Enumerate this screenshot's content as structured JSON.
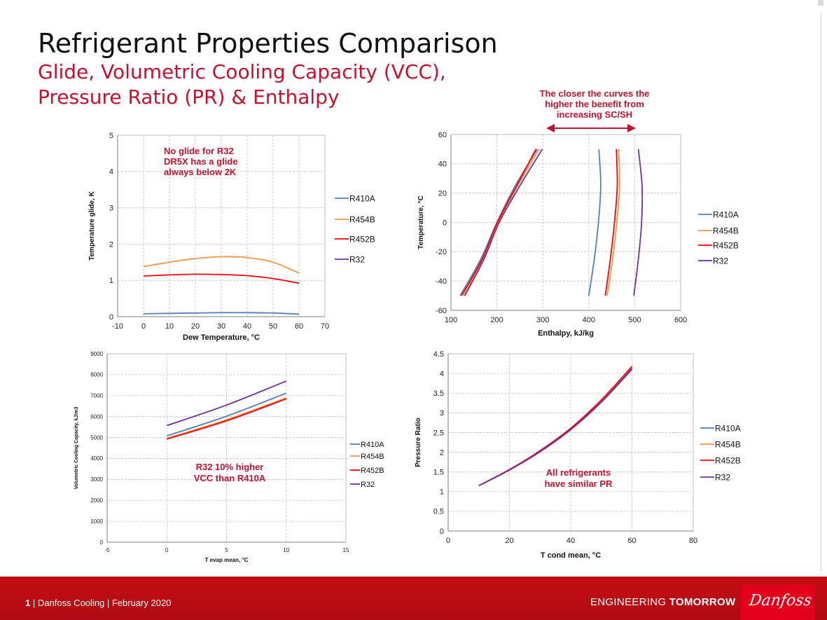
{
  "slide": {
    "title": "Refrigerant Properties Comparison",
    "subtitle_line1": "Glide, Volumetric Cooling Capacity (VCC),",
    "subtitle_line2": "Pressure Ratio (PR) & Enthalpy"
  },
  "footer": {
    "page_number": "1",
    "separator": "|",
    "text": "Danfoss Cooling | February 2020",
    "tagline_light": "ENGINEERING",
    "tagline_bold": "TOMORROW",
    "logo": "Danfoss"
  },
  "colors": {
    "R410A": "#4f81bd",
    "R454B": "#f79646",
    "R452B": "#ff0000",
    "R32": "#7030a0",
    "accent_red": "#c8102e",
    "footer_red": "#c40d15"
  },
  "chart_data": [
    {
      "id": "glide",
      "type": "line",
      "title": "",
      "xlabel": "Dew Temperature, °C",
      "ylabel": "Temperature glide, K",
      "xlim": [
        -10,
        70
      ],
      "ylim": [
        0,
        5
      ],
      "xticks": [
        -10,
        0,
        10,
        20,
        30,
        40,
        50,
        60,
        70
      ],
      "yticks": [
        0,
        1,
        2,
        3,
        4,
        5
      ],
      "grid": true,
      "legend": "right",
      "annotation": [
        "No glide for R32",
        "DR5X has a glide",
        "always below 2K"
      ],
      "series": [
        {
          "name": "R410A",
          "x": [
            0,
            10,
            20,
            30,
            40,
            50,
            60
          ],
          "y": [
            0.08,
            0.09,
            0.1,
            0.11,
            0.11,
            0.1,
            0.07
          ]
        },
        {
          "name": "R454B",
          "x": [
            0,
            10,
            20,
            30,
            40,
            50,
            60
          ],
          "y": [
            1.38,
            1.5,
            1.6,
            1.65,
            1.63,
            1.5,
            1.2
          ]
        },
        {
          "name": "R452B",
          "x": [
            0,
            10,
            20,
            30,
            40,
            50,
            60
          ],
          "y": [
            1.12,
            1.15,
            1.17,
            1.16,
            1.13,
            1.05,
            0.92
          ]
        },
        {
          "name": "R32",
          "x": [],
          "y": []
        }
      ]
    },
    {
      "id": "enthalpy",
      "type": "line",
      "title": "",
      "xlabel": "Enthalpy, kJ/kg",
      "ylabel": "Temperature, °C",
      "xlim": [
        100,
        600
      ],
      "ylim": [
        -60,
        60
      ],
      "xticks": [
        100,
        200,
        300,
        400,
        500,
        600
      ],
      "yticks": [
        -60,
        -40,
        -20,
        0,
        20,
        40,
        60
      ],
      "grid": true,
      "legend": "right",
      "annotation": [
        "The closer the curves the",
        "higher the benefit from",
        "increasing SC/SH"
      ],
      "series": [
        {
          "name": "R410A",
          "segments": [
            {
              "x": [
                120,
                165,
                200,
                240,
                288
              ],
              "y": [
                -50,
                -25,
                0,
                25,
                50
              ]
            },
            {
              "x": [
                400,
                412,
                421,
                426,
                422
              ],
              "y": [
                -50,
                -25,
                0,
                25,
                50
              ]
            }
          ]
        },
        {
          "name": "R454B",
          "segments": [
            {
              "x": [
                127,
                170,
                203,
                245,
                292
              ],
              "y": [
                -50,
                -25,
                0,
                25,
                50
              ]
            },
            {
              "x": [
                440,
                452,
                461,
                467,
                465
              ],
              "y": [
                -50,
                -25,
                0,
                25,
                50
              ]
            }
          ]
        },
        {
          "name": "R452B",
          "segments": [
            {
              "x": [
                123,
                168,
                201,
                243,
                285
              ],
              "y": [
                -50,
                -25,
                0,
                25,
                50
              ]
            },
            {
              "x": [
                436,
                447,
                456,
                462,
                460
              ],
              "y": [
                -50,
                -25,
                0,
                25,
                50
              ]
            }
          ]
        },
        {
          "name": "R32",
          "segments": [
            {
              "x": [
                130,
                172,
                205,
                250,
                299
              ],
              "y": [
                -50,
                -25,
                0,
                25,
                50
              ]
            },
            {
              "x": [
                498,
                508,
                515,
                516,
                508
              ],
              "y": [
                -50,
                -25,
                0,
                25,
                50
              ]
            }
          ]
        }
      ]
    },
    {
      "id": "vcc",
      "type": "line",
      "title": "",
      "xlabel": "T evap mean, °C",
      "ylabel": "Volumetric Cooling Capacity, kJ/m3",
      "xlim": [
        -5,
        15
      ],
      "ylim": [
        0,
        9000
      ],
      "xticks": [
        -5,
        0,
        5,
        10,
        15
      ],
      "yticks": [
        0,
        1000,
        2000,
        3000,
        4000,
        5000,
        6000,
        7000,
        8000,
        9000
      ],
      "grid": true,
      "legend": "right",
      "annotation": [
        "R32 10% higher",
        "VCC than R410A"
      ],
      "series": [
        {
          "name": "R410A",
          "x": [
            0,
            5,
            10
          ],
          "y": [
            5080,
            6020,
            7120
          ]
        },
        {
          "name": "R454B",
          "x": [
            0,
            5,
            10
          ],
          "y": [
            4960,
            5850,
            6900
          ]
        },
        {
          "name": "R452B",
          "x": [
            0,
            5,
            10
          ],
          "y": [
            4930,
            5800,
            6850
          ]
        },
        {
          "name": "R32",
          "x": [
            0,
            5,
            10
          ],
          "y": [
            5570,
            6550,
            7700
          ]
        }
      ]
    },
    {
      "id": "pressure-ratio",
      "type": "line",
      "title": "",
      "xlabel": "T cond mean, °C",
      "ylabel": "Pressure Ratio",
      "xlim": [
        0,
        80
      ],
      "ylim": [
        0,
        4.5
      ],
      "xticks": [
        0,
        20,
        40,
        60,
        80
      ],
      "yticks": [
        0,
        0.5,
        1,
        1.5,
        2,
        2.5,
        3,
        3.5,
        4,
        4.5
      ],
      "grid": true,
      "legend": "right",
      "annotation": [
        "All refrigerants",
        "have similar PR"
      ],
      "series": [
        {
          "name": "R410A",
          "x": [
            10,
            20,
            30,
            40,
            50,
            60
          ],
          "y": [
            1.15,
            1.55,
            2.01,
            2.57,
            3.27,
            4.1
          ]
        },
        {
          "name": "R454B",
          "x": [
            10,
            20,
            30,
            40,
            50,
            60
          ],
          "y": [
            1.15,
            1.56,
            2.03,
            2.6,
            3.31,
            4.15
          ]
        },
        {
          "name": "R452B",
          "x": [
            10,
            20,
            30,
            40,
            50,
            60
          ],
          "y": [
            1.15,
            1.56,
            2.04,
            2.61,
            3.33,
            4.18
          ]
        },
        {
          "name": "R32",
          "x": [
            10,
            20,
            30,
            40,
            50,
            60
          ],
          "y": [
            1.15,
            1.55,
            2.02,
            2.58,
            3.28,
            4.12
          ]
        }
      ]
    }
  ]
}
